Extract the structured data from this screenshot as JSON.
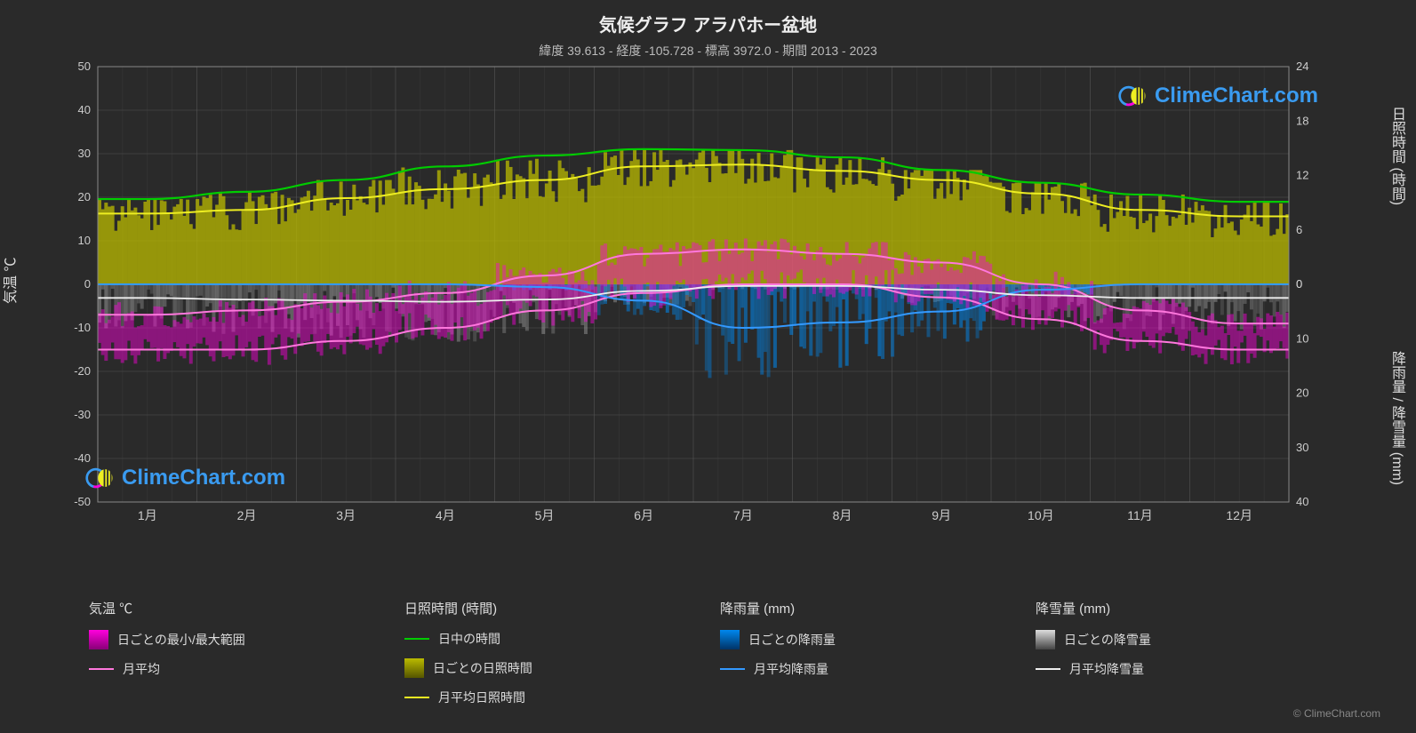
{
  "title": "気候グラフ アラパホー盆地",
  "subtitle": "緯度 39.613 - 経度 -105.728 - 標高 3972.0 - 期間 2013 - 2023",
  "watermark_text": "ClimeChart.com",
  "credit": "© ClimeChart.com",
  "axes": {
    "left_label": "気温 ℃",
    "right_label_top": "日照時間 (時間)",
    "right_label_bottom": "降雨量 / 降雪量 (mm)",
    "temp_min": -50,
    "temp_max": 50,
    "temp_step": 10,
    "daylight_min": 0,
    "daylight_max": 24,
    "daylight_step": 6,
    "precip_min": 0,
    "precip_max": 40,
    "precip_step": 10
  },
  "months": [
    "1月",
    "2月",
    "3月",
    "4月",
    "5月",
    "6月",
    "7月",
    "8月",
    "9月",
    "10月",
    "11月",
    "12月"
  ],
  "colors": {
    "background": "#2a2a2a",
    "grid": "#555555",
    "grid_minor": "#404040",
    "text": "#dddddd",
    "temp_range_fill": "#ff00dd",
    "temp_avg_line": "#ff77dd",
    "daylight_line": "#00cc00",
    "sunshine_fill": "#bbbb00",
    "sunshine_avg_line": "#eeee22",
    "rain_fill": "#0088ee",
    "rain_avg_line": "#3399ff",
    "snow_fill": "#dddddd",
    "snow_avg_line": "#eeeeee",
    "watermark": "#3a9bf0"
  },
  "daylight_hours": [
    9.4,
    10.2,
    11.5,
    13.0,
    14.2,
    14.9,
    14.8,
    14.0,
    12.6,
    11.2,
    9.9,
    9.1
  ],
  "sunshine_avg": [
    7.8,
    8.2,
    9.5,
    10.5,
    11.5,
    13.0,
    13.2,
    12.5,
    11.5,
    10.0,
    8.2,
    7.5
  ],
  "temp_avg_high": [
    -7,
    -6,
    -4,
    -2,
    2,
    7,
    8,
    7,
    5,
    0,
    -6,
    -9
  ],
  "temp_avg_low": [
    -15,
    -15,
    -13,
    -10,
    -6,
    -2,
    0,
    0,
    -3,
    -8,
    -13,
    -15
  ],
  "rain_avg": [
    0,
    0,
    0,
    0,
    0.5,
    3,
    8,
    7,
    5,
    1,
    0,
    0
  ],
  "snow_avg": [
    2.5,
    2.8,
    3.0,
    3.2,
    2.8,
    1.2,
    0.3,
    0.3,
    1.0,
    2.0,
    2.5,
    2.5
  ],
  "legend": {
    "temp_header": "気温 ℃",
    "temp_range": "日ごとの最小/最大範囲",
    "temp_avg": "月平均",
    "daylight_header": "日照時間 (時間)",
    "daylight_day": "日中の時間",
    "daylight_daily": "日ごとの日照時間",
    "daylight_avg": "月平均日照時間",
    "rain_header": "降雨量 (mm)",
    "rain_daily": "日ごとの降雨量",
    "rain_avg": "月平均降雨量",
    "snow_header": "降雪量 (mm)",
    "snow_daily": "日ごとの降雪量",
    "snow_avg": "月平均降雪量"
  }
}
